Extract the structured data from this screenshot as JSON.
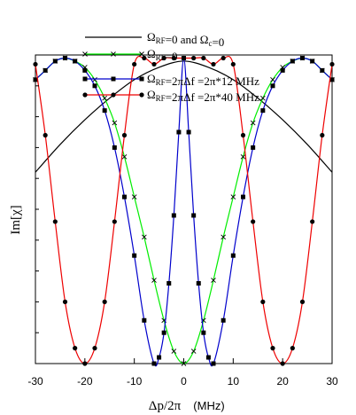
{
  "chart_data": {
    "type": "line",
    "xlabel": "Δp/2π",
    "xlabel_unit": "(MHz)",
    "ylabel": "Im[χ]",
    "xlim": [
      -30,
      30
    ],
    "ylim": [
      0,
      1
    ],
    "x_ticks": [
      "-30",
      "-20",
      "-10",
      "0",
      "10",
      "20",
      "30"
    ],
    "x_tick_values": [
      -30,
      -20,
      -10,
      0,
      10,
      20,
      30
    ],
    "grid": false,
    "legend_position": "top-right",
    "series": [
      {
        "name": "Ω_RF=0 and Ω_c=0",
        "legend_parts": [
          [
            "Ω",
            ""
          ],
          [
            "RF",
            "sub"
          ],
          [
            "=0 and Ω",
            ""
          ],
          [
            "c",
            "sub"
          ],
          [
            "=0",
            ""
          ]
        ],
        "color": "#000000",
        "marker": "none",
        "x": [
          -30,
          -25,
          -20,
          -15,
          -10,
          -5,
          0,
          5,
          10,
          15,
          20,
          25,
          30
        ],
        "y": [
          0.62,
          0.71,
          0.79,
          0.86,
          0.92,
          0.96,
          0.98,
          0.96,
          0.92,
          0.86,
          0.79,
          0.71,
          0.62
        ]
      },
      {
        "name": "Ω_RF=0",
        "legend_parts": [
          [
            "Ω",
            ""
          ],
          [
            "RF",
            "sub"
          ],
          [
            "=0",
            ""
          ]
        ],
        "color": "#00ee00",
        "marker": "x",
        "x": [
          -30,
          -28,
          -26,
          -24,
          -22,
          -20,
          -18,
          -16,
          -14,
          -12,
          -10,
          -8,
          -6,
          -4,
          -2,
          0,
          2,
          4,
          6,
          8,
          10,
          12,
          14,
          16,
          18,
          20,
          22,
          24,
          26,
          28,
          30
        ],
        "y": [
          0.92,
          0.95,
          0.98,
          0.99,
          0.98,
          0.96,
          0.92,
          0.86,
          0.78,
          0.67,
          0.54,
          0.41,
          0.27,
          0.14,
          0.04,
          0.0,
          0.04,
          0.14,
          0.27,
          0.41,
          0.54,
          0.67,
          0.78,
          0.86,
          0.92,
          0.96,
          0.98,
          0.99,
          0.98,
          0.95,
          0.92
        ]
      },
      {
        "name": "Ω_RF=2πΔf =2π*12 MHz",
        "legend_parts": [
          [
            "Ω",
            ""
          ],
          [
            "RF",
            "sub"
          ],
          [
            "=2πΔf =2π*12 MHz",
            ""
          ]
        ],
        "color": "#0000cc",
        "marker": "square",
        "x": [
          -30,
          -28,
          -26,
          -24,
          -22,
          -20,
          -18,
          -16,
          -14,
          -12,
          -10,
          -8,
          -6,
          -5,
          -4,
          -3,
          -2,
          -1,
          0,
          1,
          2,
          3,
          4,
          5,
          6,
          8,
          10,
          12,
          14,
          16,
          18,
          20,
          22,
          24,
          26,
          28,
          30
        ],
        "y": [
          0.92,
          0.95,
          0.98,
          0.99,
          0.98,
          0.95,
          0.9,
          0.82,
          0.7,
          0.54,
          0.35,
          0.14,
          0.0,
          0.02,
          0.1,
          0.26,
          0.48,
          0.75,
          0.99,
          0.75,
          0.48,
          0.26,
          0.1,
          0.02,
          0.0,
          0.14,
          0.35,
          0.54,
          0.7,
          0.82,
          0.9,
          0.95,
          0.98,
          0.99,
          0.98,
          0.95,
          0.92
        ]
      },
      {
        "name": "Ω_RF=2πΔf =2π*40 MHz",
        "legend_parts": [
          [
            "Ω",
            ""
          ],
          [
            "RF",
            "sub"
          ],
          [
            "=2πΔf =2π*40 MHz",
            ""
          ]
        ],
        "color": "#ee0000",
        "marker": "circle",
        "x": [
          -30,
          -28,
          -26,
          -24,
          -22,
          -20,
          -18,
          -16,
          -14,
          -12,
          -10,
          -8,
          -6,
          -4,
          -2,
          0,
          2,
          4,
          6,
          8,
          10,
          12,
          14,
          16,
          18,
          20,
          22,
          24,
          26,
          28,
          30
        ],
        "y": [
          0.97,
          0.74,
          0.46,
          0.2,
          0.05,
          0.0,
          0.05,
          0.2,
          0.46,
          0.74,
          0.97,
          0.99,
          0.97,
          0.99,
          0.99,
          0.99,
          0.99,
          0.99,
          0.97,
          0.99,
          0.97,
          0.74,
          0.46,
          0.2,
          0.05,
          0.0,
          0.05,
          0.2,
          0.46,
          0.74,
          0.97
        ]
      }
    ]
  }
}
